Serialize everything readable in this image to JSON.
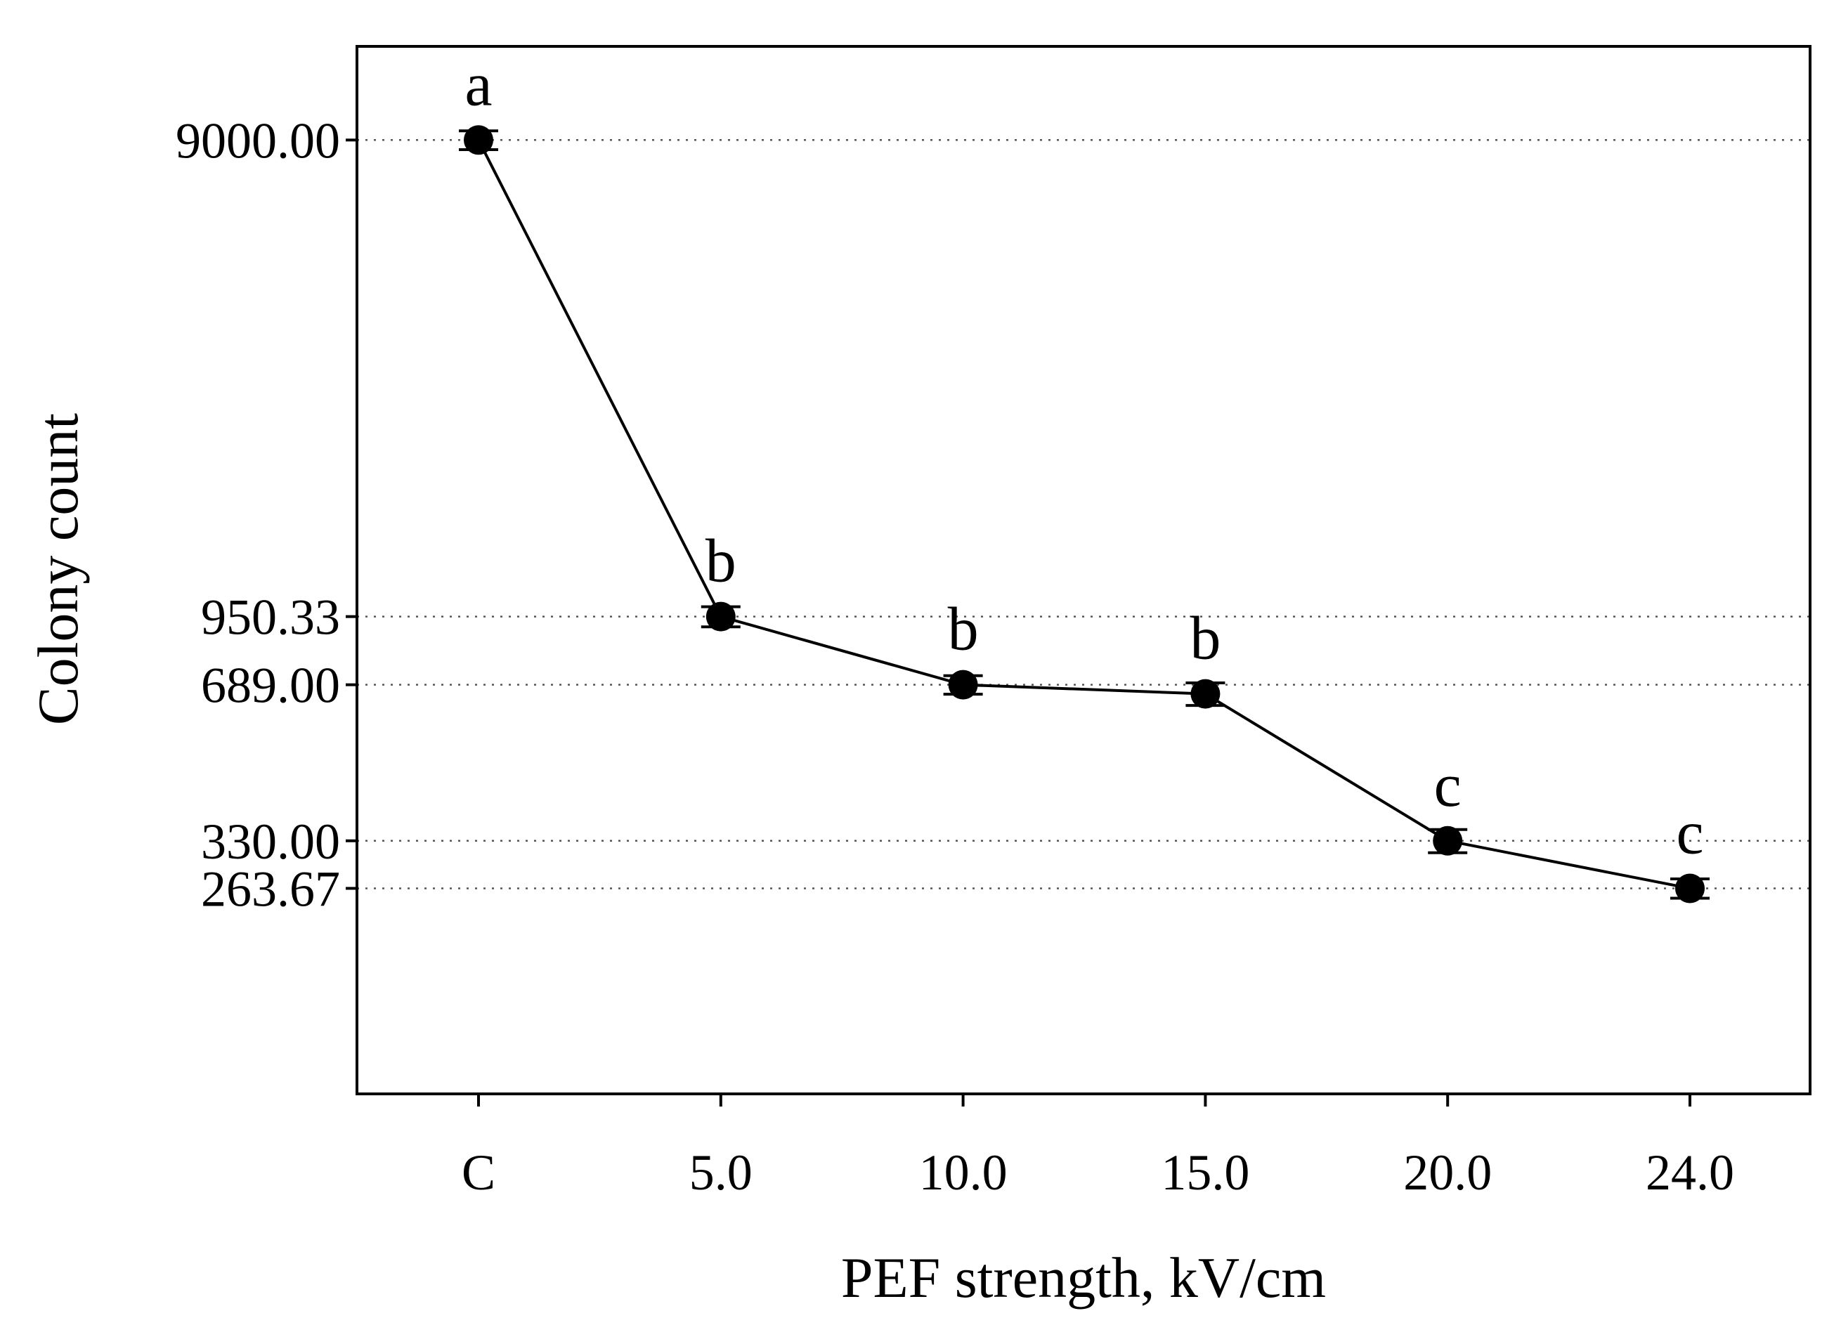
{
  "chart_data": {
    "type": "line",
    "title": "",
    "xlabel": "PEF strength, kV/cm",
    "ylabel": "Colony count",
    "categories": [
      "C",
      "5.0",
      "10.0",
      "15.0",
      "20.0",
      "24.0"
    ],
    "y_scale": "log",
    "ylim": [
      100,
      14000
    ],
    "grid": "horizontal dotted at labeled y-ticks",
    "y_ticks": [
      {
        "value": 9000.0,
        "label": "9000.00"
      },
      {
        "value": 950.33,
        "label": "950.33"
      },
      {
        "value": 689.0,
        "label": "689.00"
      },
      {
        "value": 330.0,
        "label": "330.00"
      },
      {
        "value": 263.67,
        "label": "263.67"
      }
    ],
    "series": [
      {
        "name": "Colony count",
        "values": [
          9000.0,
          950.33,
          689.0,
          660.0,
          330.0,
          263.67
        ],
        "error": [
          400,
          45,
          30,
          35,
          18,
          12
        ],
        "significance": [
          "a",
          "b",
          "b",
          "b",
          "c",
          "c"
        ]
      }
    ],
    "colors": {
      "line": "#000000",
      "marker": "#000000",
      "grid": "#555555",
      "axes": "#000000"
    }
  }
}
